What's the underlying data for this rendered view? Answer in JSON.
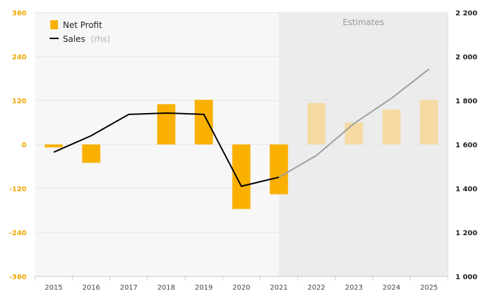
{
  "chart_data": {
    "type": "bar",
    "categories": [
      "2015",
      "2016",
      "2017",
      "2018",
      "2019",
      "2020",
      "2021",
      "2022",
      "2023",
      "2024",
      "2025"
    ],
    "series": [
      {
        "name": "Net Profit",
        "kind": "bar",
        "axis": "left",
        "values": [
          -8,
          -50,
          0,
          110,
          122,
          -176,
          -136,
          113,
          60,
          95,
          122
        ]
      },
      {
        "name": "Sales",
        "kind": "line",
        "axis": "right",
        "values": [
          1565,
          1640,
          1737,
          1743,
          1737,
          1410,
          1451,
          1550,
          1695,
          1810,
          1943
        ]
      }
    ],
    "estimates": {
      "label": "Estimates",
      "from_category": "2022"
    },
    "left_axis": {
      "ylim": [
        -360,
        360
      ],
      "ticks": [
        -360,
        -240,
        -120,
        0,
        120,
        240,
        360
      ],
      "tick_labels": [
        "-360",
        "-240",
        "-120",
        "0",
        "120",
        "240",
        "360"
      ]
    },
    "right_axis": {
      "ylim": [
        1000,
        2200
      ],
      "ticks": [
        1000,
        1200,
        1400,
        1600,
        1800,
        2000,
        2200
      ],
      "tick_labels": [
        "1 000",
        "1 200",
        "1 400",
        "1 600",
        "1 800",
        "2 000",
        "2 200"
      ]
    },
    "legend": {
      "position": "top-left",
      "items": [
        {
          "label": "Net Profit",
          "suffix": ""
        },
        {
          "label": "Sales",
          "suffix": "(rhs)"
        }
      ]
    },
    "colors": {
      "bar": "#f9b000",
      "bar_estimate": "#f5dba3",
      "line": "#000000",
      "line_estimate": "#9e9e9e",
      "left_axis_text": "#f0a800",
      "estimates_bg": "#ececec",
      "plot_bg": "#f7f7f7",
      "grid": "#e6e6e6"
    },
    "grid": true
  }
}
